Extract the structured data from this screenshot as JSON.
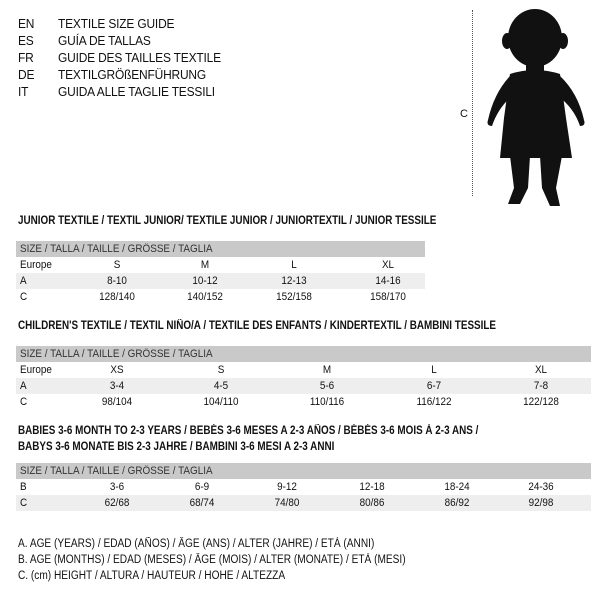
{
  "header": [
    {
      "code": "EN",
      "text": "TEXTILE SIZE GUIDE"
    },
    {
      "code": "ES",
      "text": "GUÍA DE TALLAS"
    },
    {
      "code": "FR",
      "text": "GUIDE DES TAILLES TEXTILE"
    },
    {
      "code": "DE",
      "text": "TEXTILGRÖßENFÜHRUNG"
    },
    {
      "code": "IT",
      "text": "GUIDA ALLE TAGLIE TESSILI"
    }
  ],
  "figure": {
    "label": "C",
    "icon": "child-silhouette"
  },
  "tables": [
    {
      "title": "JUNIOR TEXTILE / TEXTIL JUNIOR/ TEXTILE JUNIOR / JUNIORTEXTIL / JUNIOR TESSILE",
      "header": "SIZE / TALLA / TAILLE / GRÖSSE / TAGLIA",
      "rows": [
        {
          "label": "Europe",
          "values": [
            "S",
            "M",
            "L",
            "XL"
          ]
        },
        {
          "label": "A",
          "values": [
            "8-10",
            "10-12",
            "12-13",
            "14-16"
          ]
        },
        {
          "label": "C",
          "values": [
            "128/140",
            "140/152",
            "152/158",
            "158/170"
          ]
        }
      ]
    },
    {
      "title": "CHILDREN'S TEXTILE / TEXTIL NIÑO/A / TEXTILE DES ENFANTS / KINDERTEXTIL / BAMBINI TESSILE",
      "header": "SIZE / TALLA / TAILLE / GRÖSSE / TAGLIA",
      "rows": [
        {
          "label": "Europe",
          "values": [
            "XS",
            "S",
            "M",
            "L",
            "XL"
          ]
        },
        {
          "label": "A",
          "values": [
            "3-4",
            "4-5",
            "5-6",
            "6-7",
            "7-8"
          ]
        },
        {
          "label": "C",
          "values": [
            "98/104",
            "104/110",
            "110/116",
            "116/122",
            "122/128"
          ]
        }
      ]
    },
    {
      "title": "BABIES 3-6 MONTH TO 2-3 YEARS / BEBÉS 3-6 MESES A 2-3 AÑOS / BÉBÉS 3-6 MOIS À 2-3 ANS /",
      "title2": "BABYS 3-6 MONATE BIS 2-3 JAHRE / BAMBINI 3-6 MESI A 2-3 ANNI",
      "header": "SIZE / TALLA / TAILLE / GRÖSSE / TAGLIA",
      "rows": [
        {
          "label": "B",
          "values": [
            "3-6",
            "6-9",
            "9-12",
            "12-18",
            "18-24",
            "24-36"
          ]
        },
        {
          "label": "C",
          "values": [
            "62/68",
            "68/74",
            "74/80",
            "80/86",
            "86/92",
            "92/98"
          ]
        }
      ]
    }
  ],
  "legend": [
    "A. AGE (YEARS) / EDAD (AÑOS) / ÂGE (ANS) / ALTER (JAHRE) / ETÀ (ANNI)",
    "B. AGE (MONTHS) / EDAD (MESES) / ÂGE (MOIS) / ALTER (MONATE) / ETÀ (MESI)",
    "C. (cm) HEIGHT / ALTURA / HAUTEUR / HÖHE / ALTEZZA"
  ]
}
